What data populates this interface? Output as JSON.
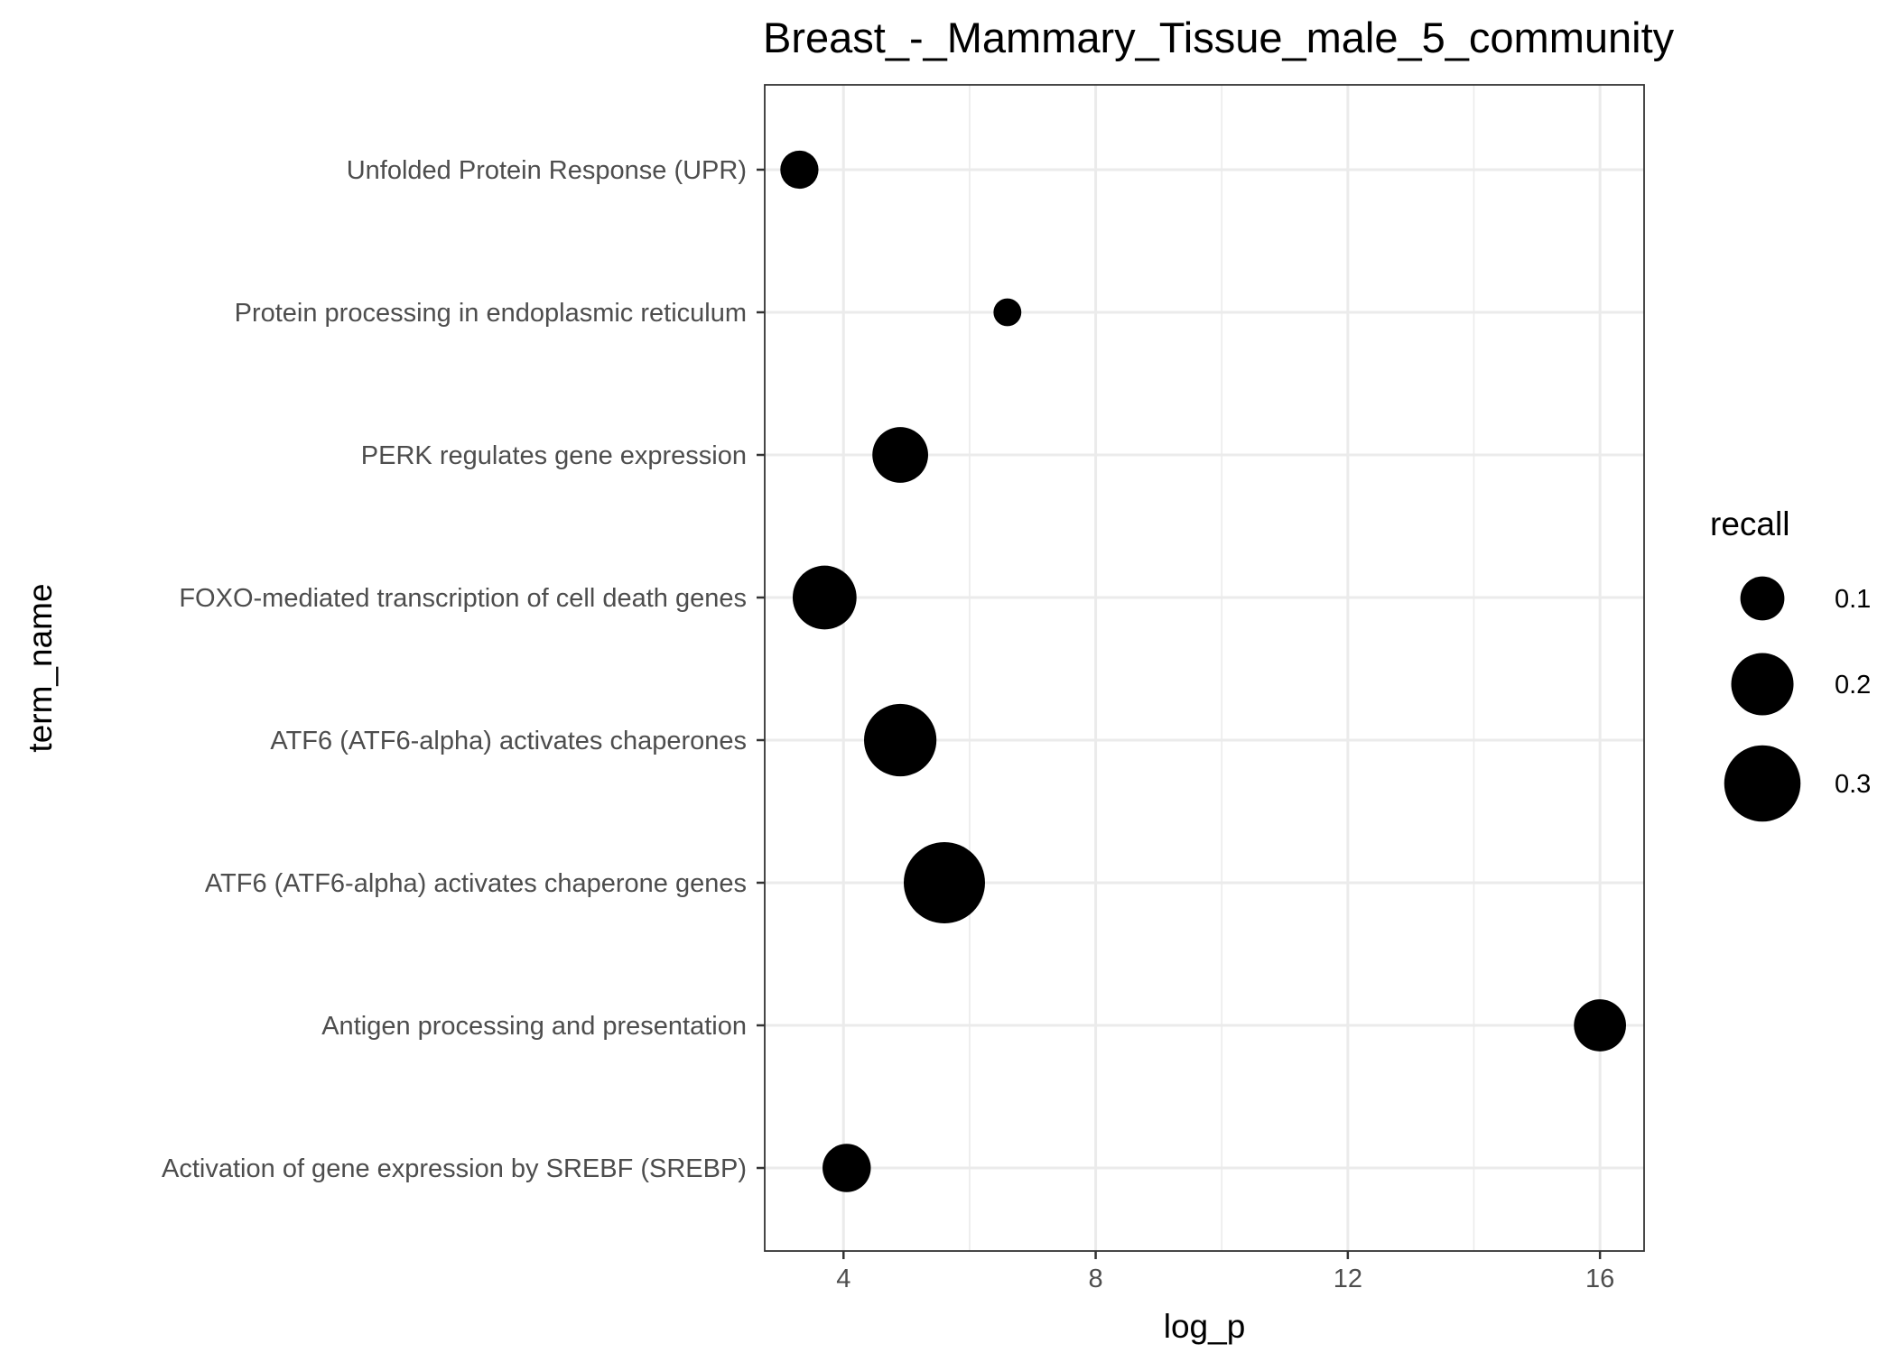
{
  "chart_data": {
    "type": "scatter",
    "title": "Breast_-_Mammary_Tissue_male_5_community",
    "xlabel": "log_p",
    "ylabel": "term_name",
    "xlim": [
      2.75,
      16.7
    ],
    "x_ticks": [
      4,
      8,
      12,
      16
    ],
    "x_minor_ticks": [
      6,
      10,
      14
    ],
    "grid": true,
    "categories": [
      "Unfolded Protein Response (UPR)",
      "Protein processing in endoplasmic reticulum",
      "PERK regulates gene expression",
      "FOXO-mediated transcription of cell death genes",
      "ATF6 (ATF6-alpha) activates chaperones",
      "ATF6 (ATF6-alpha) activates chaperone genes",
      "Antigen processing and presentation",
      "Activation of gene expression by SREBF (SREBP)"
    ],
    "points": [
      {
        "term": "Unfolded Protein Response (UPR)",
        "log_p": 3.3,
        "recall": 0.075
      },
      {
        "term": "Protein processing in endoplasmic reticulum",
        "log_p": 6.6,
        "recall": 0.04
      },
      {
        "term": "PERK regulates gene expression",
        "log_p": 4.9,
        "recall": 0.16
      },
      {
        "term": "FOXO-mediated transcription of cell death genes",
        "log_p": 3.7,
        "recall": 0.21
      },
      {
        "term": "ATF6 (ATF6-alpha) activates chaperones",
        "log_p": 4.9,
        "recall": 0.27
      },
      {
        "term": "ATF6 (ATF6-alpha) activates chaperone genes",
        "log_p": 5.6,
        "recall": 0.34
      },
      {
        "term": "Antigen processing and presentation",
        "log_p": 16.0,
        "recall": 0.14
      },
      {
        "term": "Activation of gene expression by SREBF (SREBP)",
        "log_p": 4.05,
        "recall": 0.12
      }
    ],
    "legend": {
      "title": "recall",
      "position": "right",
      "entries": [
        {
          "label": "0.1",
          "value": 0.1
        },
        {
          "label": "0.2",
          "value": 0.2
        },
        {
          "label": "0.3",
          "value": 0.3
        }
      ]
    },
    "point_color": "#000000",
    "grid_color": "#ebebeb",
    "panel_border_color": "#333333"
  }
}
